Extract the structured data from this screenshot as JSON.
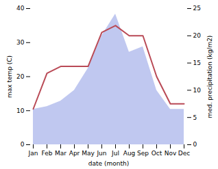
{
  "chart_data": {
    "type": "line",
    "categories": [
      "Jan",
      "Feb",
      "Mar",
      "Apr",
      "May",
      "Jun",
      "Jul",
      "Aug",
      "Sep",
      "Oct",
      "Nov",
      "Dec"
    ],
    "series": [
      {
        "type": "area",
        "axis": "y2",
        "color": "#c0c8f0",
        "values": [
          6.5,
          7,
          8,
          10,
          14,
          20,
          24,
          17,
          18,
          10,
          6.5,
          6.5
        ]
      },
      {
        "type": "line",
        "color": "#b94a56",
        "values": [
          10.5,
          21,
          23,
          23,
          23,
          33,
          35,
          32,
          32,
          20,
          12,
          12
        ]
      }
    ],
    "xlabel": "date (month)",
    "ylabel": "max temp (C)",
    "y2label": "med. precipitation (kg/m2)",
    "ylim": [
      0,
      40
    ],
    "yticks": [
      0,
      10,
      20,
      30,
      40
    ],
    "y2lim": [
      0,
      25
    ],
    "y2ticks": [
      0,
      5,
      10,
      15,
      20,
      25
    ]
  }
}
